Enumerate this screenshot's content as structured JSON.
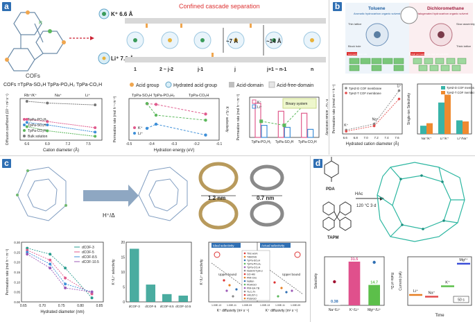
{
  "figure": {
    "panel_a": {
      "label": "a",
      "top_title": "Confined cascade separation",
      "ion_k": "K⁺ 6.6 Å",
      "ion_li": "Li⁺ 7.6 Å",
      "cofs_label": "COFs",
      "r_label": "R",
      "pore_small": "~7 Å",
      "pore_large": "~14 Å",
      "stage_labels": [
        "1",
        "2 ~ j-2",
        "j-1",
        "j",
        "j+1 ~ n-1",
        "n"
      ],
      "cofs_types": "COFs =TpPa-SO₃H TpPa-PO₃H₂ TpPa-CO₂H",
      "legend": [
        "Acid group",
        "Hydrated acid group",
        "Acid-domain",
        "Acid-free-domain"
      ],
      "chart1_top_labels": [
        "Rb⁺/K⁺",
        "Na⁺",
        "Li⁺"
      ],
      "chart2_top_labels": [
        "TpPa-SO₃H TpPa-PO₃H₂",
        "TpPa-CO₂H"
      ],
      "binary_system": "Binary system"
    },
    "panel_b": {
      "label": "b",
      "toluene_title": "Toluene",
      "toluene_sub": "Aromatic hydrocarbon organic solvent",
      "dcm_title": "Dichloromethane",
      "dcm_sub": "Halogenated hydrocarbon organic solvent",
      "small_left_1": "Thin lattice",
      "small_left_2": "Block hole",
      "small_right_1": "Slow assembly",
      "small_right_2": "Thick lattice",
      "left_banner": "Low permeation rate",
      "right_banner": "High permeation rate High ion selectivity"
    },
    "panel_c": {
      "label": "c",
      "reaction": "H⁺/Δ",
      "pore_a": "1.2 nm",
      "pore_b": "0.7 nm",
      "ideal": "Ideal selectivity",
      "actual": "Actual selectivity",
      "upper_bound": "Upper bound",
      "legend_items": [
        "This work",
        "TdBOSS",
        "TpPa-SO₃H",
        "TpPa-PO₃H₂",
        "TpPa-CO₂H",
        "NaSOCTpA-Li",
        "GO-HB",
        "PIM-Ciro",
        "Nafion",
        "PDA/GO",
        "PIM-EA-TB",
        "Ti₃C₂Tx",
        "HKUST-1",
        "PSS/GO"
      ]
    },
    "panel_d": {
      "label": "d",
      "mol1": "PDA",
      "mol2": "TAPM",
      "reagent": "HAc",
      "condition": "120 °C 3 d",
      "bar_labels": [
        "0.38",
        "31.5",
        "14.7"
      ],
      "time_labels": [
        "Li⁺",
        "Na⁺",
        "K⁺",
        "Mg²⁺"
      ],
      "scale": "50 s"
    }
  },
  "chart_data": [
    {
      "type": "line",
      "panel": "a-1",
      "xlabel": "Cation diameter (Å)",
      "ylabel": "Diffusion coefficient (10⁻⁹ m² s⁻¹)",
      "x_ticks": [
        "6.6",
        "6.9",
        "7.2",
        "7.5"
      ],
      "series": [
        {
          "name": "TpPa-PO₃H₂",
          "x": [
            6.6,
            6.9,
            7.6
          ],
          "values": [
            0.1,
            0.07,
            0.025
          ],
          "color": "#e05a8c"
        },
        {
          "name": "TpPa-SO₃H",
          "x": [
            6.6,
            6.9,
            7.6
          ],
          "values": [
            0.06,
            0.04,
            0.012
          ],
          "color": "#3d8fd8"
        },
        {
          "name": "TpPa-CO₂H",
          "x": [
            6.6,
            6.9,
            7.6
          ],
          "values": [
            0.03,
            0.015,
            0.006
          ],
          "color": "#5cb85c"
        },
        {
          "name": "Bulk solution",
          "x": [
            6.6,
            6.9,
            7.6
          ],
          "values": [
            2.0,
            1.5,
            1.1
          ],
          "color": "#777777"
        }
      ]
    },
    {
      "type": "line",
      "panel": "a-2",
      "xlabel": "Hydration energy (eV)",
      "ylabel": "Permeation rate (mol h⁻¹ m⁻²)",
      "y2label": "K⁺/Li⁺ selectivity",
      "x_ticks": [
        "-0.5",
        "-0.4",
        "-0.3",
        "-0.2",
        "-0.1"
      ],
      "series": [
        {
          "name": "K⁺",
          "x": [
            -0.42,
            -0.38,
            -0.16
          ],
          "values": [
            0.8,
            0.75,
            0.32
          ],
          "color": "#e05a8c"
        },
        {
          "name": "Li⁺",
          "x": [
            -0.42,
            -0.38,
            -0.16
          ],
          "values": [
            0.09,
            0.13,
            0.05
          ],
          "color": "#3d8fd8"
        },
        {
          "name": "K⁺/Li⁺",
          "x": [
            -0.42,
            -0.38,
            -0.16
          ],
          "values": [
            22,
            15,
            12
          ],
          "color": "#5cb85c"
        }
      ]
    },
    {
      "type": "bar",
      "panel": "a-3",
      "ylabel": "Permeation rate (mol h⁻¹ m⁻²)",
      "y2label": "K⁺/Li⁺ actual selectivity",
      "categories": [
        "TpPa-PO₃H₂",
        "TpPa-SO₃H",
        "TpPa-CO₂H"
      ],
      "series": [
        {
          "name": "K⁺",
          "values": [
            0.17,
            0.13,
            0.12
          ],
          "color": "#e05a8c"
        },
        {
          "name": "Li⁺",
          "values": [
            0.06,
            0.05,
            0.04
          ],
          "color": "#3d8fd8"
        }
      ],
      "selectivity": [
        8,
        6,
        18
      ]
    },
    {
      "type": "line",
      "panel": "b-1",
      "xlabel": "Hydrated cation diameter (Å)",
      "ylabel": "Permeation rate (mmol m⁻² h⁻¹)",
      "x_ticks": [
        "6.6",
        "6.8",
        "7.0",
        "7.2",
        "7.4",
        "7.6"
      ],
      "point_labels": [
        "K⁺",
        "Na⁺",
        "Li⁺"
      ],
      "series": [
        {
          "name": "TpHZ-D COF membrane",
          "x": [
            6.62,
            7.16,
            7.64
          ],
          "values": [
            12,
            30,
            130
          ],
          "color": "#888888"
        },
        {
          "name": "TpHZ-T COF membrane",
          "x": [
            6.62,
            7.16,
            7.64
          ],
          "values": [
            8,
            24,
            105
          ],
          "color": "#e24b4b"
        }
      ]
    },
    {
      "type": "bar",
      "panel": "b-2",
      "ylabel": "Single-ion Selectivity",
      "categories": [
        "Na⁺/K⁺",
        "Li⁺/K⁺",
        "Li⁺/Na⁺"
      ],
      "series": [
        {
          "name": "TpHZ-D COF membrane",
          "values": [
            2.3,
            8.8,
            3.8
          ],
          "color": "#38b4a8"
        },
        {
          "name": "TpHZ-T COF membrane",
          "values": [
            3.0,
            11.0,
            3.5
          ],
          "color": "#ef8a2f"
        }
      ]
    },
    {
      "type": "line",
      "panel": "c-1",
      "xlabel": "Hydrated diameter (nm)",
      "ylabel": "Permeation rate (mol h⁻¹ m⁻²)",
      "x_ticks": [
        "0.65",
        "0.70",
        "0.75",
        "0.80",
        "0.85"
      ],
      "series": [
        {
          "name": "dCOF-3",
          "x": [
            0.66,
            0.72,
            0.76,
            0.83
          ],
          "values": [
            0.27,
            0.24,
            0.17,
            0.02
          ],
          "color": "#2a9d8f"
        },
        {
          "name": "dCOF-5",
          "x": [
            0.66,
            0.72,
            0.76,
            0.83
          ],
          "values": [
            0.26,
            0.21,
            0.12,
            0.04
          ],
          "color": "#e05a8c"
        },
        {
          "name": "dCOF-8.5",
          "x": [
            0.66,
            0.72,
            0.76,
            0.83
          ],
          "values": [
            0.25,
            0.19,
            0.09,
            0.05
          ],
          "color": "#3d8fd8"
        },
        {
          "name": "dCOF-10.5",
          "x": [
            0.66,
            0.72,
            0.76,
            0.83
          ],
          "values": [
            0.24,
            0.17,
            0.07,
            0.05
          ],
          "color": "#9b59b6"
        }
      ]
    },
    {
      "type": "bar",
      "panel": "c-2",
      "ylabel": "K⁺/Li⁺ selectivity",
      "categories": [
        "dCOF-3",
        "dCOF-5",
        "dCOF-8.5",
        "dCOF-10.5"
      ],
      "values": [
        17.8,
        5.8,
        2.6,
        2.1
      ],
      "ylim": [
        0,
        20
      ],
      "color": "#2a9d8f"
    },
    {
      "type": "scatter",
      "panel": "c-3",
      "xlabel": "K⁺ diffusivity (m² s⁻¹)",
      "ylabel": "K⁺/Li⁺ selectivity",
      "x_ticks": [
        "1.00E-13",
        "1.00E-11",
        "1.00E-09"
      ]
    },
    {
      "type": "bar",
      "panel": "d-1",
      "ylabel": "Selectivity",
      "y2label": "Ratio of Dₙ",
      "categories": [
        "Na⁺/Li⁺",
        "K⁺/Li⁺",
        "Mg²⁺/Li⁺"
      ],
      "values": [
        0.38,
        31.5,
        14.7
      ],
      "colors": [
        "#cccccc",
        "#e0508c",
        "#5cbf4a"
      ]
    },
    {
      "type": "line",
      "panel": "d-2",
      "xlabel": "Time",
      "ylabel": "Current (nA)",
      "series": [
        {
          "name": "Li⁺",
          "values": [
            0.3
          ],
          "color": "#e67e22"
        },
        {
          "name": "Na⁺",
          "values": [
            0.25
          ],
          "color": "#e24b4b"
        },
        {
          "name": "K⁺",
          "values": [
            0.55
          ],
          "color": "#5cbf4a"
        },
        {
          "name": "Mg²⁺",
          "values": [
            1.2
          ],
          "color": "#3b4fd8"
        }
      ]
    }
  ]
}
